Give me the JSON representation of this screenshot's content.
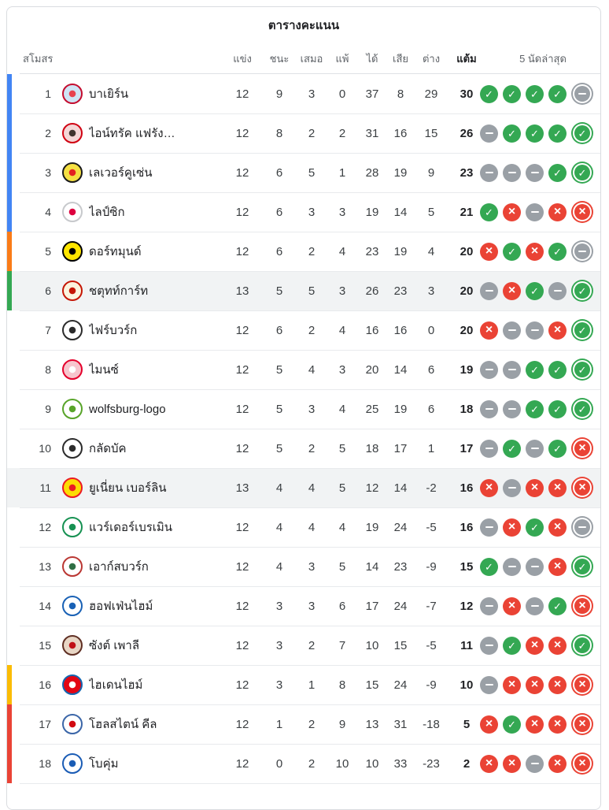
{
  "title": "ตารางคะแนน",
  "columns": {
    "club": "สโมสร",
    "played": "แข่ง",
    "won": "ชนะ",
    "drawn": "เสมอ",
    "lost": "แพ้",
    "goals_for": "ได้",
    "goals_against": "เสีย",
    "goal_diff": "ต่าง",
    "points": "แต้ม",
    "last5": "5 นัดล่าสุด"
  },
  "zone_colors": {
    "champions_league": "#4285f4",
    "europa_league": "#fa7b17",
    "conference_league": "#34a853",
    "relegation_playoff": "#fbbc04",
    "relegation": "#ea4335",
    "none": "transparent"
  },
  "form_colors": {
    "W": "#34a853",
    "L": "#ea4335",
    "D": "#9aa0a6"
  },
  "highlight_color": "#f1f3f4",
  "rows": [
    {
      "rank": 1,
      "team": "บาเยิร์น",
      "logo": "bayern-munich-logo",
      "logo_colors": [
        "#c40c2e",
        "#cfe4f5",
        "#e8414f"
      ],
      "played": 12,
      "won": 9,
      "drawn": 3,
      "lost": 0,
      "gf": 37,
      "ga": 8,
      "gd": 29,
      "pts": 30,
      "zone": "champions_league",
      "highlight": false,
      "form": [
        "W",
        "W",
        "W",
        "W",
        "D"
      ]
    },
    {
      "rank": 2,
      "team": "ไอน์ทรัค แฟรัง…",
      "logo": "eintracht-frankfurt-logo",
      "logo_colors": [
        "#d00212",
        "#f4d7d7",
        "#40342f"
      ],
      "played": 12,
      "won": 8,
      "drawn": 2,
      "lost": 2,
      "gf": 31,
      "ga": 16,
      "gd": 15,
      "pts": 26,
      "zone": "champions_league",
      "highlight": false,
      "form": [
        "D",
        "W",
        "W",
        "W",
        "W"
      ]
    },
    {
      "rank": 3,
      "team": "เลเวอร์คูเซ่น",
      "logo": "bayer-leverkusen-logo",
      "logo_colors": [
        "#1a1a1a",
        "#f5e042",
        "#e32221"
      ],
      "played": 12,
      "won": 6,
      "drawn": 5,
      "lost": 1,
      "gf": 28,
      "ga": 19,
      "gd": 9,
      "pts": 23,
      "zone": "champions_league",
      "highlight": false,
      "form": [
        "D",
        "D",
        "D",
        "W",
        "W"
      ]
    },
    {
      "rank": 4,
      "team": "ไลป์ซิก",
      "logo": "rb-leipzig-logo",
      "logo_colors": [
        "#c7c9cc",
        "#ffffff",
        "#dd013f"
      ],
      "played": 12,
      "won": 6,
      "drawn": 3,
      "lost": 3,
      "gf": 19,
      "ga": 14,
      "gd": 5,
      "pts": 21,
      "zone": "champions_league",
      "highlight": false,
      "form": [
        "W",
        "L",
        "D",
        "L",
        "L"
      ]
    },
    {
      "rank": 5,
      "team": "ดอร์ทมุนด์",
      "logo": "borussia-dortmund-logo",
      "logo_colors": [
        "#000000",
        "#ffe600",
        "#000000"
      ],
      "played": 12,
      "won": 6,
      "drawn": 2,
      "lost": 4,
      "gf": 23,
      "ga": 19,
      "gd": 4,
      "pts": 20,
      "zone": "europa_league",
      "highlight": false,
      "form": [
        "L",
        "W",
        "L",
        "W",
        "D"
      ]
    },
    {
      "rank": 6,
      "team": "ชตุทท์การ์ท",
      "logo": "stuttgart-logo",
      "logo_colors": [
        "#c51605",
        "#fbf4de",
        "#c51605"
      ],
      "played": 13,
      "won": 5,
      "drawn": 5,
      "lost": 3,
      "gf": 26,
      "ga": 23,
      "gd": 3,
      "pts": 20,
      "zone": "conference_league",
      "highlight": true,
      "form": [
        "D",
        "L",
        "W",
        "D",
        "W"
      ]
    },
    {
      "rank": 7,
      "team": "ไฟร์บวร์ก",
      "logo": "freiburg-logo",
      "logo_colors": [
        "#2b2b2b",
        "#ffffff",
        "#2b2b2b"
      ],
      "played": 12,
      "won": 6,
      "drawn": 2,
      "lost": 4,
      "gf": 16,
      "ga": 16,
      "gd": 0,
      "pts": 20,
      "zone": "none",
      "highlight": false,
      "form": [
        "L",
        "D",
        "D",
        "L",
        "W"
      ]
    },
    {
      "rank": 8,
      "team": "ไมนซ์",
      "logo": "mainz-logo",
      "logo_colors": [
        "#e4002b",
        "#f7c5cd",
        "#ffffff"
      ],
      "played": 12,
      "won": 5,
      "drawn": 4,
      "lost": 3,
      "gf": 20,
      "ga": 14,
      "gd": 6,
      "pts": 19,
      "zone": "none",
      "highlight": false,
      "form": [
        "D",
        "D",
        "W",
        "W",
        "W"
      ]
    },
    {
      "rank": 9,
      "team": "wolfsburg-logo",
      "logo": "wolfsburg-logo",
      "logo_colors": [
        "#58a429",
        "#ffffff",
        "#58a429"
      ],
      "played": 12,
      "won": 5,
      "drawn": 3,
      "lost": 4,
      "gf": 25,
      "ga": 19,
      "gd": 6,
      "pts": 18,
      "zone": "none",
      "highlight": false,
      "form": [
        "D",
        "D",
        "W",
        "W",
        "W"
      ]
    },
    {
      "rank": 10,
      "team": "กลัดบัค",
      "logo": "gladbach-logo",
      "logo_colors": [
        "#2b2b2b",
        "#ffffff",
        "#2b2b2b"
      ],
      "played": 12,
      "won": 5,
      "drawn": 2,
      "lost": 5,
      "gf": 18,
      "ga": 17,
      "gd": 1,
      "pts": 17,
      "zone": "none",
      "highlight": false,
      "form": [
        "D",
        "W",
        "D",
        "W",
        "L"
      ]
    },
    {
      "rank": 11,
      "team": "ยูเนี่ยน เบอร์ลิน",
      "logo": "union-berlin-logo",
      "logo_colors": [
        "#eb1923",
        "#fddc02",
        "#eb1923"
      ],
      "played": 13,
      "won": 4,
      "drawn": 4,
      "lost": 5,
      "gf": 12,
      "ga": 14,
      "gd": -2,
      "pts": 16,
      "zone": "none",
      "highlight": true,
      "form": [
        "L",
        "D",
        "L",
        "L",
        "L"
      ]
    },
    {
      "rank": 12,
      "team": "แวร์เดอร์เบรเมิน",
      "logo": "werder-bremen-logo",
      "logo_colors": [
        "#169152",
        "#ffffff",
        "#169152"
      ],
      "played": 12,
      "won": 4,
      "drawn": 4,
      "lost": 4,
      "gf": 19,
      "ga": 24,
      "gd": -5,
      "pts": 16,
      "zone": "none",
      "highlight": false,
      "form": [
        "D",
        "L",
        "W",
        "L",
        "D"
      ]
    },
    {
      "rank": 13,
      "team": "เอาก์สบวร์ก",
      "logo": "augsburg-logo",
      "logo_colors": [
        "#ba3733",
        "#ffffff",
        "#2f6e44"
      ],
      "played": 12,
      "won": 4,
      "drawn": 3,
      "lost": 5,
      "gf": 14,
      "ga": 23,
      "gd": -9,
      "pts": 15,
      "zone": "none",
      "highlight": false,
      "form": [
        "W",
        "D",
        "D",
        "L",
        "W"
      ]
    },
    {
      "rank": 14,
      "team": "ฮอฟเฟ่นไฮม์",
      "logo": "hoffenheim-logo",
      "logo_colors": [
        "#1961b5",
        "#ffffff",
        "#1961b5"
      ],
      "played": 12,
      "won": 3,
      "drawn": 3,
      "lost": 6,
      "gf": 17,
      "ga": 24,
      "gd": -7,
      "pts": 12,
      "zone": "none",
      "highlight": false,
      "form": [
        "D",
        "L",
        "D",
        "W",
        "L"
      ]
    },
    {
      "rank": 15,
      "team": "ซังต์ เพาลี",
      "logo": "st-pauli-logo",
      "logo_colors": [
        "#5f2f23",
        "#e8d6c5",
        "#c01218"
      ],
      "played": 12,
      "won": 3,
      "drawn": 2,
      "lost": 7,
      "gf": 10,
      "ga": 15,
      "gd": -5,
      "pts": 11,
      "zone": "none",
      "highlight": false,
      "form": [
        "D",
        "W",
        "L",
        "L",
        "W"
      ]
    },
    {
      "rank": 16,
      "team": "ไฮเดนไฮม์",
      "logo": "heidenheim-logo",
      "logo_colors": [
        "#1365b0",
        "#e30613",
        "#ffffff"
      ],
      "played": 12,
      "won": 3,
      "drawn": 1,
      "lost": 8,
      "gf": 15,
      "ga": 24,
      "gd": -9,
      "pts": 10,
      "zone": "relegation_playoff",
      "highlight": false,
      "form": [
        "D",
        "L",
        "L",
        "L",
        "L"
      ]
    },
    {
      "rank": 17,
      "team": "โฮลสไตน์ คีล",
      "logo": "holstein-kiel-logo",
      "logo_colors": [
        "#3b66a8",
        "#ffffff",
        "#d20a10"
      ],
      "played": 12,
      "won": 1,
      "drawn": 2,
      "lost": 9,
      "gf": 13,
      "ga": 31,
      "gd": -18,
      "pts": 5,
      "zone": "relegation",
      "highlight": false,
      "form": [
        "L",
        "W",
        "L",
        "L",
        "L"
      ]
    },
    {
      "rank": 18,
      "team": "โบคุ่ม",
      "logo": "bochum-logo",
      "logo_colors": [
        "#1a5cb5",
        "#ffffff",
        "#1a5cb5"
      ],
      "played": 12,
      "won": 0,
      "drawn": 2,
      "lost": 10,
      "gf": 10,
      "ga": 33,
      "gd": -23,
      "pts": 2,
      "zone": "relegation",
      "highlight": false,
      "form": [
        "L",
        "L",
        "D",
        "L",
        "L"
      ]
    }
  ]
}
